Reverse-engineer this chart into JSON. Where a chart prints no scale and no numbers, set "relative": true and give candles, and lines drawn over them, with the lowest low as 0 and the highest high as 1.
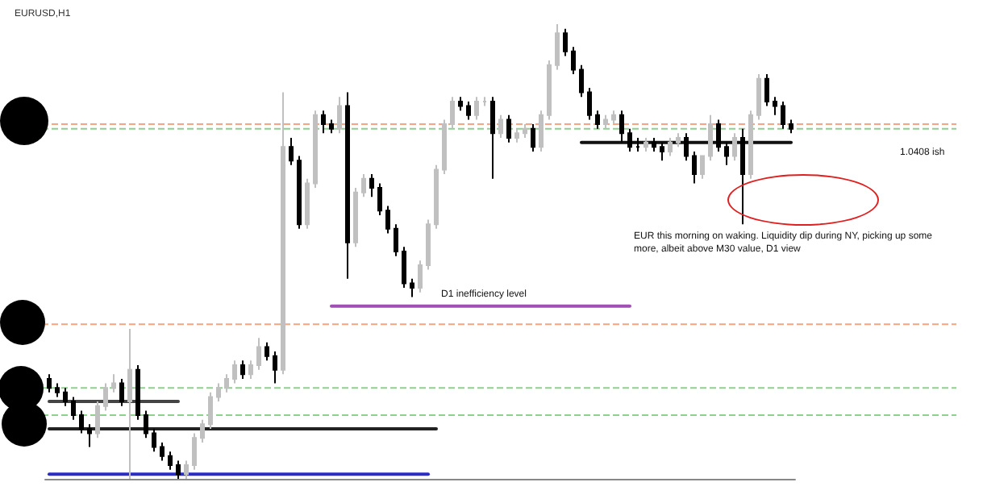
{
  "chart_data": {
    "type": "candlestick",
    "title": "EURUSD,H1",
    "relative": true,
    "categories": [
      null,
      null,
      null,
      null,
      null,
      null,
      null,
      null,
      null,
      null,
      null,
      null,
      null,
      null,
      null,
      null,
      null,
      null,
      null,
      null,
      null,
      null,
      null,
      null,
      null,
      null,
      null,
      null,
      null,
      null,
      null,
      null,
      null,
      null,
      null,
      null,
      null,
      null,
      null,
      null,
      null,
      null,
      null,
      null,
      null,
      null,
      null,
      null,
      null,
      null,
      null,
      null,
      null,
      null,
      null,
      null,
      null,
      null,
      null,
      null,
      null,
      null,
      null,
      null,
      null,
      null,
      null,
      null,
      null,
      null,
      null,
      null,
      null,
      null,
      null,
      null,
      null,
      null,
      null,
      null,
      null,
      null,
      null,
      null,
      null,
      null,
      null,
      null,
      null,
      null,
      null,
      null,
      null
    ],
    "ohlc": [
      [
        0.22,
        0.23,
        0.19,
        0.2
      ],
      [
        0.2,
        0.21,
        0.18,
        0.19
      ],
      [
        0.19,
        0.2,
        0.16,
        0.17
      ],
      [
        0.17,
        0.18,
        0.13,
        0.14
      ],
      [
        0.14,
        0.15,
        0.1,
        0.11
      ],
      [
        0.11,
        0.12,
        0.07,
        0.1
      ],
      [
        0.1,
        0.17,
        0.09,
        0.16
      ],
      [
        0.16,
        0.21,
        0.15,
        0.2
      ],
      [
        0.2,
        0.23,
        0.19,
        0.21
      ],
      [
        0.21,
        0.22,
        0.16,
        0.17
      ],
      [
        0.17,
        0.33,
        0.0,
        0.24
      ],
      [
        0.24,
        0.25,
        0.13,
        0.14
      ],
      [
        0.14,
        0.15,
        0.09,
        0.1
      ],
      [
        0.1,
        0.11,
        0.06,
        0.07
      ],
      [
        0.07,
        0.08,
        0.04,
        0.05
      ],
      [
        0.05,
        0.06,
        0.02,
        0.03
      ],
      [
        0.03,
        0.04,
        0.0,
        0.01
      ],
      [
        0.01,
        0.04,
        0.0,
        0.03
      ],
      [
        0.03,
        0.1,
        0.02,
        0.09
      ],
      [
        0.09,
        0.13,
        0.08,
        0.12
      ],
      [
        0.12,
        0.19,
        0.11,
        0.18
      ],
      [
        0.18,
        0.21,
        0.17,
        0.2
      ],
      [
        0.2,
        0.23,
        0.19,
        0.22
      ],
      [
        0.22,
        0.26,
        0.21,
        0.25
      ],
      [
        0.25,
        0.26,
        0.22,
        0.23
      ],
      [
        0.23,
        0.26,
        0.22,
        0.25
      ],
      [
        0.25,
        0.31,
        0.24,
        0.29
      ],
      [
        0.29,
        0.3,
        0.26,
        0.27
      ],
      [
        0.27,
        0.28,
        0.21,
        0.24
      ],
      [
        0.24,
        0.85,
        0.23,
        0.73
      ],
      [
        0.73,
        0.75,
        0.69,
        0.7
      ],
      [
        0.7,
        0.71,
        0.55,
        0.56
      ],
      [
        0.56,
        0.66,
        0.55,
        0.65
      ],
      [
        0.65,
        0.81,
        0.64,
        0.8
      ],
      [
        0.8,
        0.81,
        0.76,
        0.78
      ],
      [
        0.78,
        0.79,
        0.76,
        0.77
      ],
      [
        0.77,
        0.84,
        0.76,
        0.82
      ],
      [
        0.82,
        0.85,
        0.44,
        0.52
      ],
      [
        0.52,
        0.64,
        0.51,
        0.63
      ],
      [
        0.63,
        0.67,
        0.62,
        0.66
      ],
      [
        0.66,
        0.67,
        0.62,
        0.64
      ],
      [
        0.64,
        0.65,
        0.58,
        0.59
      ],
      [
        0.59,
        0.6,
        0.54,
        0.55
      ],
      [
        0.55,
        0.56,
        0.49,
        0.5
      ],
      [
        0.5,
        0.51,
        0.42,
        0.43
      ],
      [
        0.43,
        0.44,
        0.4,
        0.42
      ],
      [
        0.42,
        0.48,
        0.41,
        0.47
      ],
      [
        0.47,
        0.57,
        0.46,
        0.56
      ],
      [
        0.56,
        0.69,
        0.55,
        0.68
      ],
      [
        0.68,
        0.79,
        0.67,
        0.78
      ],
      [
        0.78,
        0.84,
        0.77,
        0.83
      ],
      [
        0.83,
        0.84,
        0.81,
        0.82
      ],
      [
        0.82,
        0.83,
        0.79,
        0.8
      ],
      [
        0.8,
        0.84,
        0.79,
        0.83
      ],
      [
        0.83,
        0.84,
        0.82,
        0.83
      ],
      [
        0.83,
        0.84,
        0.66,
        0.76
      ],
      [
        0.76,
        0.8,
        0.75,
        0.79
      ],
      [
        0.79,
        0.8,
        0.74,
        0.75
      ],
      [
        0.75,
        0.77,
        0.74,
        0.76
      ],
      [
        0.76,
        0.78,
        0.75,
        0.77
      ],
      [
        0.77,
        0.78,
        0.72,
        0.73
      ],
      [
        0.73,
        0.81,
        0.72,
        0.8
      ],
      [
        0.8,
        0.92,
        0.79,
        0.91
      ],
      [
        0.91,
        1.0,
        0.9,
        0.98
      ],
      [
        0.98,
        0.99,
        0.93,
        0.94
      ],
      [
        0.94,
        0.95,
        0.89,
        0.9
      ],
      [
        0.9,
        0.91,
        0.84,
        0.85
      ],
      [
        0.85,
        0.86,
        0.79,
        0.8
      ],
      [
        0.8,
        0.81,
        0.77,
        0.78
      ],
      [
        0.78,
        0.8,
        0.77,
        0.79
      ],
      [
        0.79,
        0.81,
        0.78,
        0.8
      ],
      [
        0.8,
        0.81,
        0.74,
        0.76
      ],
      [
        0.76,
        0.77,
        0.72,
        0.73
      ],
      [
        0.73,
        0.75,
        0.72,
        0.73
      ],
      [
        0.73,
        0.75,
        0.72,
        0.74
      ],
      [
        0.74,
        0.75,
        0.72,
        0.73
      ],
      [
        0.73,
        0.74,
        0.7,
        0.72
      ],
      [
        0.72,
        0.75,
        0.71,
        0.74
      ],
      [
        0.74,
        0.76,
        0.73,
        0.75
      ],
      [
        0.75,
        0.76,
        0.7,
        0.71
      ],
      [
        0.71,
        0.72,
        0.65,
        0.67
      ],
      [
        0.67,
        0.71,
        0.66,
        0.71
      ],
      [
        0.71,
        0.8,
        0.7,
        0.78
      ],
      [
        0.78,
        0.79,
        0.72,
        0.73
      ],
      [
        0.73,
        0.74,
        0.69,
        0.71
      ],
      [
        0.71,
        0.76,
        0.7,
        0.75
      ],
      [
        0.75,
        0.77,
        0.56,
        0.67
      ],
      [
        0.67,
        0.81,
        0.66,
        0.8
      ],
      [
        0.8,
        0.89,
        0.79,
        0.88
      ],
      [
        0.88,
        0.89,
        0.82,
        0.83
      ],
      [
        0.83,
        0.84,
        0.8,
        0.82
      ],
      [
        0.82,
        0.83,
        0.77,
        0.78
      ],
      [
        0.78,
        0.79,
        0.76,
        0.77
      ]
    ],
    "colors": [
      "#000000",
      "#000000",
      "#000000",
      "#000000",
      "#000000",
      "#000000",
      "#c0c0c0",
      "#c0c0c0",
      "#c0c0c0",
      "#000000",
      "#c0c0c0",
      "#000000",
      "#000000",
      "#000000",
      "#000000",
      "#000000",
      "#000000",
      "#c0c0c0",
      "#c0c0c0",
      "#c0c0c0",
      "#c0c0c0",
      "#c0c0c0",
      "#c0c0c0",
      "#c0c0c0",
      "#000000",
      "#c0c0c0",
      "#c0c0c0",
      "#000000",
      "#000000",
      "#c0c0c0",
      "#000000",
      "#000000",
      "#c0c0c0",
      "#c0c0c0",
      "#000000",
      "#000000",
      "#c0c0c0",
      "#000000",
      "#c0c0c0",
      "#c0c0c0",
      "#000000",
      "#000000",
      "#000000",
      "#000000",
      "#000000",
      "#000000",
      "#c0c0c0",
      "#c0c0c0",
      "#c0c0c0",
      "#c0c0c0",
      "#c0c0c0",
      "#000000",
      "#000000",
      "#c0c0c0",
      "#c0c0c0",
      "#000000",
      "#c0c0c0",
      "#000000",
      "#c0c0c0",
      "#c0c0c0",
      "#000000",
      "#c0c0c0",
      "#c0c0c0",
      "#c0c0c0",
      "#000000",
      "#000000",
      "#000000",
      "#000000",
      "#000000",
      "#c0c0c0",
      "#c0c0c0",
      "#000000",
      "#000000",
      "#000000",
      "#c0c0c0",
      "#000000",
      "#000000",
      "#c0c0c0",
      "#c0c0c0",
      "#000000",
      "#000000",
      "#c0c0c0",
      "#c0c0c0",
      "#000000",
      "#000000",
      "#c0c0c0",
      "#000000",
      "#c0c0c0",
      "#c0c0c0",
      "#000000",
      "#000000",
      "#000000",
      "#000000"
    ],
    "series": [
      {
        "type": "line",
        "color": "#2b2bc8",
        "values": [
          0.01,
          0.01,
          0.01,
          0.01,
          0.01,
          0.01,
          0.01,
          0.01,
          0.01,
          0.01,
          0.01,
          0.01,
          0.01,
          0.01,
          0.01,
          0.01,
          0.01,
          0.01,
          0.01,
          0.01,
          0.01,
          0.01,
          0.01,
          0.01,
          0.01,
          0.01,
          0.01,
          0.01,
          0.01,
          0.01,
          0.01,
          0.01,
          0.01,
          0.01,
          0.01,
          0.01,
          0.01,
          0.01,
          0.01,
          0.01,
          0.01,
          0.01,
          0.01,
          0.01,
          0.01,
          0.01,
          0.01,
          0.01,
          null,
          null,
          null,
          null,
          null,
          null,
          null,
          null,
          null,
          null,
          null,
          null,
          null,
          null,
          null,
          null,
          null,
          null,
          null,
          null,
          null,
          null,
          null,
          null,
          null,
          null,
          null,
          null,
          null,
          null,
          null,
          null,
          null,
          null,
          null,
          null,
          null,
          null,
          null,
          null,
          null,
          null,
          null,
          null,
          null
        ]
      },
      {
        "type": "line",
        "color": "#222222",
        "values": [
          0.11,
          0.11,
          0.11,
          0.11,
          0.11,
          0.11,
          0.11,
          0.11,
          0.11,
          0.11,
          0.11,
          0.11,
          0.11,
          0.11,
          0.11,
          0.11,
          0.11,
          0.11,
          0.11,
          0.11,
          0.11,
          0.11,
          0.11,
          0.11,
          0.11,
          0.11,
          0.11,
          0.11,
          0.11,
          0.11,
          0.11,
          0.11,
          0.11,
          0.11,
          0.11,
          0.11,
          0.11,
          0.11,
          0.11,
          0.11,
          0.11,
          0.11,
          0.11,
          0.11,
          0.11,
          0.11,
          0.11,
          0.11,
          0.11,
          null,
          null,
          null,
          null,
          null,
          null,
          null,
          null,
          null,
          null,
          null,
          null,
          null,
          null,
          null,
          null,
          null,
          null,
          null,
          null,
          null,
          null,
          null,
          null,
          null,
          null,
          null,
          null,
          null,
          null,
          null,
          null,
          null,
          null,
          null,
          null,
          null,
          null,
          null,
          null,
          null,
          null,
          null,
          null
        ]
      },
      {
        "type": "line",
        "color": "#444444",
        "values": [
          0.17,
          0.17,
          0.17,
          0.17,
          0.17,
          0.17,
          0.17,
          0.17,
          0.17,
          0.17,
          0.17,
          0.17,
          0.17,
          0.17,
          0.17,
          0.17,
          0.17,
          null,
          null,
          null,
          null,
          null,
          null,
          null,
          null,
          null,
          null,
          null,
          null,
          null,
          null,
          null,
          null,
          null,
          null,
          null,
          null,
          null,
          null,
          null,
          null,
          null,
          null,
          null,
          null,
          null,
          null,
          null,
          null,
          null,
          null,
          null,
          null,
          null,
          null,
          null,
          null,
          null,
          null,
          null,
          null,
          null,
          null,
          null,
          null,
          null,
          null,
          null,
          null,
          null,
          null,
          null,
          null,
          null,
          null,
          null,
          null,
          null,
          null,
          null,
          null,
          null,
          null,
          null,
          null,
          null,
          null,
          null,
          null,
          null,
          null,
          null,
          null
        ]
      },
      {
        "type": "line",
        "color": "#a050b4",
        "values": [
          null,
          null,
          null,
          null,
          null,
          null,
          null,
          null,
          null,
          null,
          null,
          null,
          null,
          null,
          null,
          null,
          null,
          null,
          null,
          null,
          null,
          null,
          null,
          null,
          null,
          null,
          null,
          null,
          null,
          null,
          null,
          null,
          null,
          null,
          null,
          0.38,
          0.38,
          0.38,
          0.38,
          0.38,
          0.38,
          0.38,
          0.38,
          0.38,
          0.38,
          0.38,
          0.38,
          0.38,
          0.38,
          0.38,
          0.38,
          0.38,
          0.38,
          0.38,
          0.38,
          0.38,
          0.38,
          0.38,
          0.38,
          0.38,
          0.38,
          0.38,
          0.38,
          0.38,
          0.38,
          0.38,
          0.38,
          0.38,
          0.38,
          0.38,
          0.38,
          0.38,
          0.38,
          null,
          null,
          null,
          null,
          null,
          null,
          null,
          null,
          null,
          null,
          null,
          null,
          null,
          null,
          null,
          null,
          null,
          null,
          null,
          null
        ]
      },
      {
        "type": "line",
        "color": "#111111",
        "values": [
          null,
          null,
          null,
          null,
          null,
          null,
          null,
          null,
          null,
          null,
          null,
          null,
          null,
          null,
          null,
          null,
          null,
          null,
          null,
          null,
          null,
          null,
          null,
          null,
          null,
          null,
          null,
          null,
          null,
          null,
          null,
          null,
          null,
          null,
          null,
          null,
          null,
          null,
          null,
          null,
          null,
          null,
          null,
          null,
          null,
          null,
          null,
          null,
          null,
          null,
          null,
          null,
          null,
          null,
          null,
          null,
          null,
          null,
          null,
          null,
          null,
          null,
          null,
          null,
          null,
          null,
          0.74,
          0.74,
          0.74,
          0.74,
          0.74,
          0.74,
          0.74,
          0.74,
          0.74,
          0.74,
          0.74,
          0.74,
          0.74,
          0.74,
          0.74,
          0.74,
          0.74,
          0.74,
          0.74,
          0.74,
          0.74,
          0.74,
          0.74,
          0.74,
          0.74,
          0.74,
          0.74
        ]
      }
    ],
    "ref_lines": [
      {
        "axis": "y",
        "value": 0.78,
        "color": "#f4a582",
        "line_style": "dashed"
      },
      {
        "axis": "y",
        "value": 0.77,
        "color": "#8fcf8f",
        "line_style": "dashed"
      },
      {
        "axis": "y",
        "value": 0.34,
        "color": "#f4a582",
        "line_style": "dashed"
      },
      {
        "axis": "y",
        "value": 0.2,
        "color": "#8fcf8f",
        "line_style": "dashed"
      },
      {
        "axis": "y",
        "value": 0.14,
        "color": "#8fcf8f",
        "line_style": "dashed"
      }
    ],
    "annotations": [
      "1.0408 ish",
      {
        "text": "D1 inefficiency level",
        "y": 0.38
      },
      "EUR this morning on waking. Liquidity dip during NY, picking up some more, albeit above M30 value, D1 view"
    ]
  }
}
